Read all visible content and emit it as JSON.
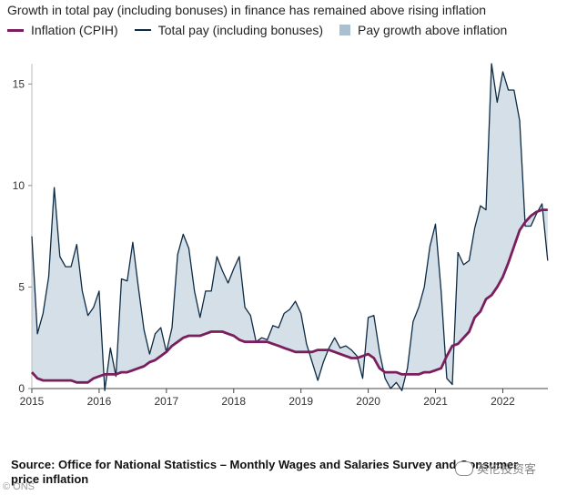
{
  "title": "Growth in total pay (including bonuses) in finance has remained above rising inflation",
  "source": "Source: Office for National Statistics – Monthly Wages and Salaries Survey and Consumer price inflation",
  "ons_mark": "© ONS",
  "watermark": "英伦投资客",
  "colors": {
    "inflation": "#7a1e5e",
    "total_pay": "#0d2b45",
    "fill": "#a9bfd2"
  },
  "chart_data": {
    "type": "line",
    "title": "Growth in total pay (including bonuses) in finance has remained above rising inflation",
    "xlabel": "",
    "ylabel": "",
    "xlim": [
      2015.0,
      2022.67
    ],
    "ylim": [
      0,
      16
    ],
    "yticks": [
      0,
      5,
      10,
      15
    ],
    "xticks": [
      2015,
      2016,
      2017,
      2018,
      2019,
      2020,
      2021,
      2022
    ],
    "grid": false,
    "legend_position": "top",
    "legend": [
      "Inflation (CPIH)",
      "Total pay (including bonuses)",
      "Pay growth above inflation"
    ],
    "series": [
      {
        "name": "Inflation (CPIH)",
        "x": [
          2015.0,
          2015.083,
          2015.167,
          2015.25,
          2015.333,
          2015.417,
          2015.5,
          2015.583,
          2015.667,
          2015.75,
          2015.833,
          2015.917,
          2016.0,
          2016.083,
          2016.167,
          2016.25,
          2016.333,
          2016.417,
          2016.5,
          2016.583,
          2016.667,
          2016.75,
          2016.833,
          2016.917,
          2017.0,
          2017.083,
          2017.167,
          2017.25,
          2017.333,
          2017.417,
          2017.5,
          2017.583,
          2017.667,
          2017.75,
          2017.833,
          2017.917,
          2018.0,
          2018.083,
          2018.167,
          2018.25,
          2018.333,
          2018.417,
          2018.5,
          2018.583,
          2018.667,
          2018.75,
          2018.833,
          2018.917,
          2019.0,
          2019.083,
          2019.167,
          2019.25,
          2019.333,
          2019.417,
          2019.5,
          2019.583,
          2019.667,
          2019.75,
          2019.833,
          2019.917,
          2020.0,
          2020.083,
          2020.167,
          2020.25,
          2020.333,
          2020.417,
          2020.5,
          2020.583,
          2020.667,
          2020.75,
          2020.833,
          2020.917,
          2021.0,
          2021.083,
          2021.167,
          2021.25,
          2021.333,
          2021.417,
          2021.5,
          2021.583,
          2021.667,
          2021.75,
          2021.833,
          2021.917,
          2022.0,
          2022.083,
          2022.167,
          2022.25,
          2022.333,
          2022.417,
          2022.5,
          2022.583,
          2022.667
        ],
        "values": [
          0.8,
          0.5,
          0.4,
          0.4,
          0.4,
          0.4,
          0.4,
          0.4,
          0.3,
          0.3,
          0.3,
          0.5,
          0.6,
          0.7,
          0.7,
          0.7,
          0.8,
          0.8,
          0.9,
          1.0,
          1.1,
          1.3,
          1.4,
          1.6,
          1.8,
          2.1,
          2.3,
          2.5,
          2.6,
          2.6,
          2.6,
          2.7,
          2.8,
          2.8,
          2.8,
          2.7,
          2.6,
          2.4,
          2.3,
          2.3,
          2.3,
          2.3,
          2.3,
          2.2,
          2.1,
          2.0,
          1.9,
          1.8,
          1.8,
          1.8,
          1.8,
          1.9,
          1.9,
          1.9,
          1.8,
          1.7,
          1.6,
          1.5,
          1.5,
          1.6,
          1.7,
          1.5,
          1.0,
          0.8,
          0.8,
          0.8,
          0.7,
          0.7,
          0.7,
          0.7,
          0.8,
          0.8,
          0.9,
          1.0,
          1.6,
          2.1,
          2.2,
          2.5,
          2.8,
          3.5,
          3.8,
          4.4,
          4.6,
          5.0,
          5.5,
          6.2,
          7.0,
          7.8,
          8.2,
          8.5,
          8.7,
          8.8,
          8.8
        ]
      },
      {
        "name": "Total pay (including bonuses)",
        "x": [
          2015.0,
          2015.083,
          2015.167,
          2015.25,
          2015.333,
          2015.417,
          2015.5,
          2015.583,
          2015.667,
          2015.75,
          2015.833,
          2015.917,
          2016.0,
          2016.083,
          2016.167,
          2016.25,
          2016.333,
          2016.417,
          2016.5,
          2016.583,
          2016.667,
          2016.75,
          2016.833,
          2016.917,
          2017.0,
          2017.083,
          2017.167,
          2017.25,
          2017.333,
          2017.417,
          2017.5,
          2017.583,
          2017.667,
          2017.75,
          2017.833,
          2017.917,
          2018.0,
          2018.083,
          2018.167,
          2018.25,
          2018.333,
          2018.417,
          2018.5,
          2018.583,
          2018.667,
          2018.75,
          2018.833,
          2018.917,
          2019.0,
          2019.083,
          2019.167,
          2019.25,
          2019.333,
          2019.417,
          2019.5,
          2019.583,
          2019.667,
          2019.75,
          2019.833,
          2019.917,
          2020.0,
          2020.083,
          2020.167,
          2020.25,
          2020.333,
          2020.417,
          2020.5,
          2020.583,
          2020.667,
          2020.75,
          2020.833,
          2020.917,
          2021.0,
          2021.083,
          2021.167,
          2021.25,
          2021.333,
          2021.417,
          2021.5,
          2021.583,
          2021.667,
          2021.75,
          2021.833,
          2021.917,
          2022.0,
          2022.083,
          2022.167,
          2022.25,
          2022.333,
          2022.417,
          2022.5,
          2022.583,
          2022.667
        ],
        "values": [
          7.5,
          2.7,
          3.7,
          5.5,
          9.9,
          6.5,
          6.0,
          6.0,
          7.1,
          4.8,
          3.6,
          4.0,
          4.8,
          -0.1,
          2.0,
          0.6,
          5.4,
          5.3,
          7.2,
          5.0,
          2.9,
          1.7,
          2.7,
          3.0,
          1.8,
          3.0,
          6.6,
          7.6,
          6.9,
          4.8,
          3.5,
          4.8,
          4.8,
          6.5,
          5.8,
          5.2,
          5.9,
          6.5,
          4.0,
          3.6,
          2.3,
          2.5,
          2.4,
          3.1,
          3.0,
          3.7,
          3.9,
          4.3,
          3.7,
          2.2,
          1.3,
          0.4,
          1.3,
          2.0,
          2.5,
          2.0,
          2.1,
          1.9,
          1.6,
          0.5,
          3.5,
          3.6,
          1.8,
          0.5,
          0.0,
          0.3,
          -0.1,
          1.0,
          3.3,
          4.0,
          5.0,
          7.0,
          8.1,
          4.8,
          0.5,
          0.2,
          6.7,
          6.1,
          6.3,
          7.9,
          9.0,
          8.8,
          16.0,
          14.1,
          15.6,
          14.7,
          14.7,
          13.2,
          8.0,
          8.0,
          8.6,
          9.1,
          6.3
        ]
      }
    ]
  }
}
